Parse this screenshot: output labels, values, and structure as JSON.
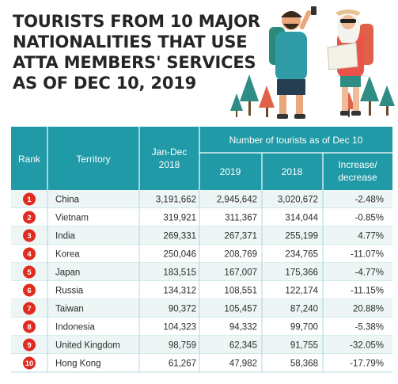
{
  "title_lines": [
    "TOURISTS FROM 10 MAJOR",
    "NATIONALITIES THAT USE",
    "ATTA MEMBERS' SERVICES",
    "AS OF DEC 10, 2019"
  ],
  "colors": {
    "header": "#1f9aa6",
    "rank_badge": "#e02b20",
    "row_alt": "#edf5f5",
    "title": "#252525"
  },
  "chart_data": {
    "type": "table",
    "headers": {
      "rank": "Rank",
      "territory": "Territory",
      "jandec_line1": "Jan-Dec",
      "jandec_line2": "2018",
      "group": "Number of tourists as of Dec 10",
      "y2019": "2019",
      "y2018": "2018",
      "change_line1": "Increase/",
      "change_line2": "decrease"
    },
    "rows": [
      {
        "rank": "1",
        "territory": "China",
        "jandec_2018": "3,191,662",
        "y2019": "2,945,642",
        "y2018": "3,020,672",
        "change": "-2.48%"
      },
      {
        "rank": "2",
        "territory": "Vietnam",
        "jandec_2018": "319,921",
        "y2019": "311,367",
        "y2018": "314,044",
        "change": "-0.85%"
      },
      {
        "rank": "3",
        "territory": "India",
        "jandec_2018": "269,331",
        "y2019": "267,371",
        "y2018": "255,199",
        "change": "4.77%"
      },
      {
        "rank": "4",
        "territory": "Korea",
        "jandec_2018": "250,046",
        "y2019": "208,769",
        "y2018": "234,765",
        "change": "-11.07%"
      },
      {
        "rank": "5",
        "territory": "Japan",
        "jandec_2018": "183,515",
        "y2019": "167,007",
        "y2018": "175,366",
        "change": "-4.77%"
      },
      {
        "rank": "6",
        "territory": "Russia",
        "jandec_2018": "134,312",
        "y2019": "108,551",
        "y2018": "122,174",
        "change": "-11.15%"
      },
      {
        "rank": "7",
        "territory": "Taiwan",
        "jandec_2018": "90,372",
        "y2019": "105,457",
        "y2018": "87,240",
        "change": "20.88%"
      },
      {
        "rank": "8",
        "territory": "Indonesia",
        "jandec_2018": "104,323",
        "y2019": "94,332",
        "y2018": "99,700",
        "change": "-5.38%"
      },
      {
        "rank": "9",
        "territory": "United Kingdom",
        "jandec_2018": "98,759",
        "y2019": "62,345",
        "y2018": "91,755",
        "change": "-32.05%"
      },
      {
        "rank": "10",
        "territory": "Hong Kong",
        "jandec_2018": "61,267",
        "y2019": "47,982",
        "y2018": "58,368",
        "change": "-17.79%"
      }
    ]
  }
}
